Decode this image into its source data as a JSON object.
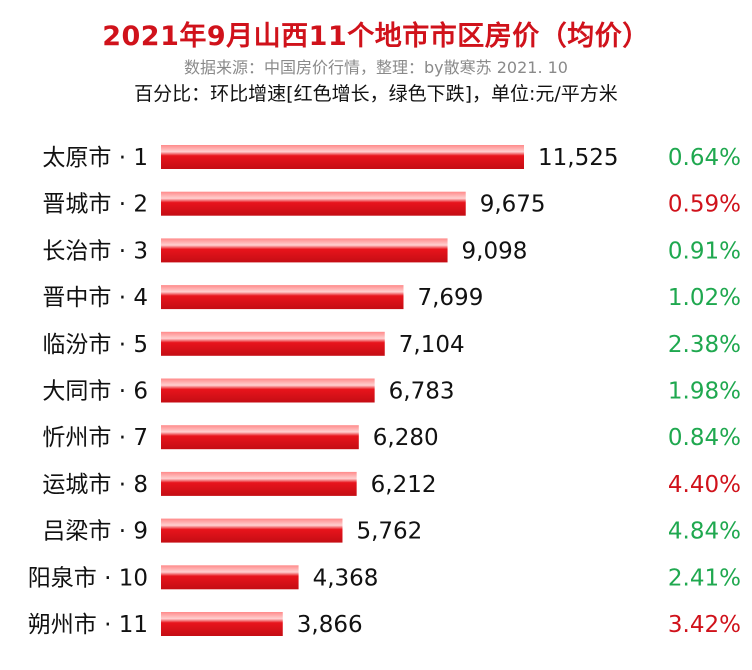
{
  "title": "2021年9月山西11个地市市区房价（均价）",
  "source": "数据来源：中国房价行情，整理：by散寒苏  2021. 10",
  "note": "百分比：环比增速[红色增长，绿色下跌]，单位:元/平方米",
  "colors": {
    "title": "#d0121b",
    "bar": "#e8141c",
    "increase": "#d0121b",
    "decrease": "#1fa84f"
  },
  "chart_data": {
    "type": "bar",
    "orientation": "horizontal",
    "categories": [
      "太原市 · 1",
      "晋城市 · 2",
      "长治市 · 3",
      "晋中市 · 4",
      "临汾市 · 5",
      "大同市 · 6",
      "忻州市 · 7",
      "运城市 · 8",
      "吕梁市 · 9",
      "阳泉市 · 10",
      "朔州市 · 11"
    ],
    "values": [
      11525,
      9675,
      9098,
      7699,
      7104,
      6783,
      6280,
      6212,
      5762,
      4368,
      3866
    ],
    "value_labels": [
      "11,525",
      "9,675",
      "9,098",
      "7,699",
      "7,104",
      "6,783",
      "6,280",
      "6,212",
      "5,762",
      "4,368",
      "3,866"
    ],
    "change_labels": [
      "0.64%",
      "0.59%",
      "0.91%",
      "1.02%",
      "2.38%",
      "1.98%",
      "0.84%",
      "4.40%",
      "4.84%",
      "2.41%",
      "3.42%"
    ],
    "change_direction": [
      "down",
      "up",
      "down",
      "down",
      "down",
      "down",
      "down",
      "up",
      "down",
      "down",
      "up"
    ],
    "xlim": [
      0,
      11525
    ]
  }
}
